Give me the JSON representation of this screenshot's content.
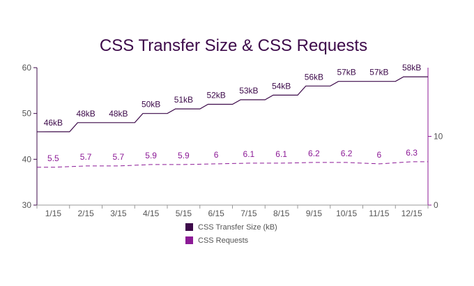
{
  "chart_data": {
    "type": "line",
    "title": "CSS Transfer Size & CSS Requests",
    "categories": [
      "1/15",
      "2/15",
      "3/15",
      "4/15",
      "5/15",
      "6/15",
      "7/15",
      "8/15",
      "9/15",
      "10/15",
      "11/15",
      "12/15"
    ],
    "y_left": {
      "ticks": [
        "30",
        "40",
        "50",
        "60"
      ],
      "range": [
        30,
        60
      ]
    },
    "y_right": {
      "ticks": [
        "0",
        "10"
      ],
      "range": [
        0,
        20
      ]
    },
    "x_extent": [
      0.5,
      12
    ],
    "series": [
      {
        "name": "CSS Transfer Size (kB)",
        "axis": "left",
        "color": "#3d0a4a",
        "style": "solid",
        "x": [
          0.5,
          1.5,
          1,
          1.5,
          2,
          2.5,
          3,
          3.5,
          4,
          4.5,
          5,
          5.5,
          6,
          6.5,
          7,
          7.5,
          8,
          8.5,
          9,
          9.5,
          10,
          10.5,
          11,
          11.5,
          12
        ],
        "values": [
          46,
          46,
          47,
          48,
          48,
          48,
          48,
          49,
          50,
          50,
          51,
          51,
          52,
          53,
          53,
          54,
          54,
          55,
          56,
          57,
          57,
          57,
          57,
          57,
          58
        ],
        "points": [
          {
            "x": 0.5,
            "y": 46,
            "label": "46kB"
          },
          {
            "x": 1.5,
            "y": 48,
            "label": "48kB"
          },
          {
            "x": 2.5,
            "y": 48,
            "label": "48kB"
          },
          {
            "x": 3.5,
            "y": 50,
            "label": "50kB"
          },
          {
            "x": 4.5,
            "y": 51,
            "label": "51kB"
          },
          {
            "x": 5.5,
            "y": 52,
            "label": "52kB"
          },
          {
            "x": 6.5,
            "y": 53,
            "label": "53kB"
          },
          {
            "x": 7.5,
            "y": 54,
            "label": "54kB"
          },
          {
            "x": 8.5,
            "y": 56,
            "label": "56kB"
          },
          {
            "x": 9.5,
            "y": 57,
            "label": "57kB"
          },
          {
            "x": 10.5,
            "y": 57,
            "label": "57kB"
          },
          {
            "x": 11.5,
            "y": 58,
            "label": "58kB"
          }
        ]
      },
      {
        "name": "CSS Requests",
        "axis": "right",
        "color": "#8c1a96",
        "style": "dashed",
        "points": [
          {
            "x": 0.5,
            "y": 5.5,
            "label": "5.5"
          },
          {
            "x": 1.5,
            "y": 5.7,
            "label": "5.7"
          },
          {
            "x": 2.5,
            "y": 5.7,
            "label": "5.7"
          },
          {
            "x": 3.5,
            "y": 5.9,
            "label": "5.9"
          },
          {
            "x": 4.5,
            "y": 5.9,
            "label": "5.9"
          },
          {
            "x": 5.5,
            "y": 6,
            "label": "6"
          },
          {
            "x": 6.5,
            "y": 6.1,
            "label": "6.1"
          },
          {
            "x": 7.5,
            "y": 6.1,
            "label": "6.1"
          },
          {
            "x": 8.5,
            "y": 6.2,
            "label": "6.2"
          },
          {
            "x": 9.5,
            "y": 6.2,
            "label": "6.2"
          },
          {
            "x": 10.5,
            "y": 6,
            "label": "6"
          },
          {
            "x": 11.5,
            "y": 6.3,
            "label": "6.3"
          }
        ]
      }
    ],
    "legend": [
      {
        "label": "CSS Transfer Size (kB)",
        "color": "#3d0a4a"
      },
      {
        "label": "CSS Requests",
        "color": "#8c1a96"
      }
    ],
    "legend_position": "bottom-center",
    "grid": false
  }
}
